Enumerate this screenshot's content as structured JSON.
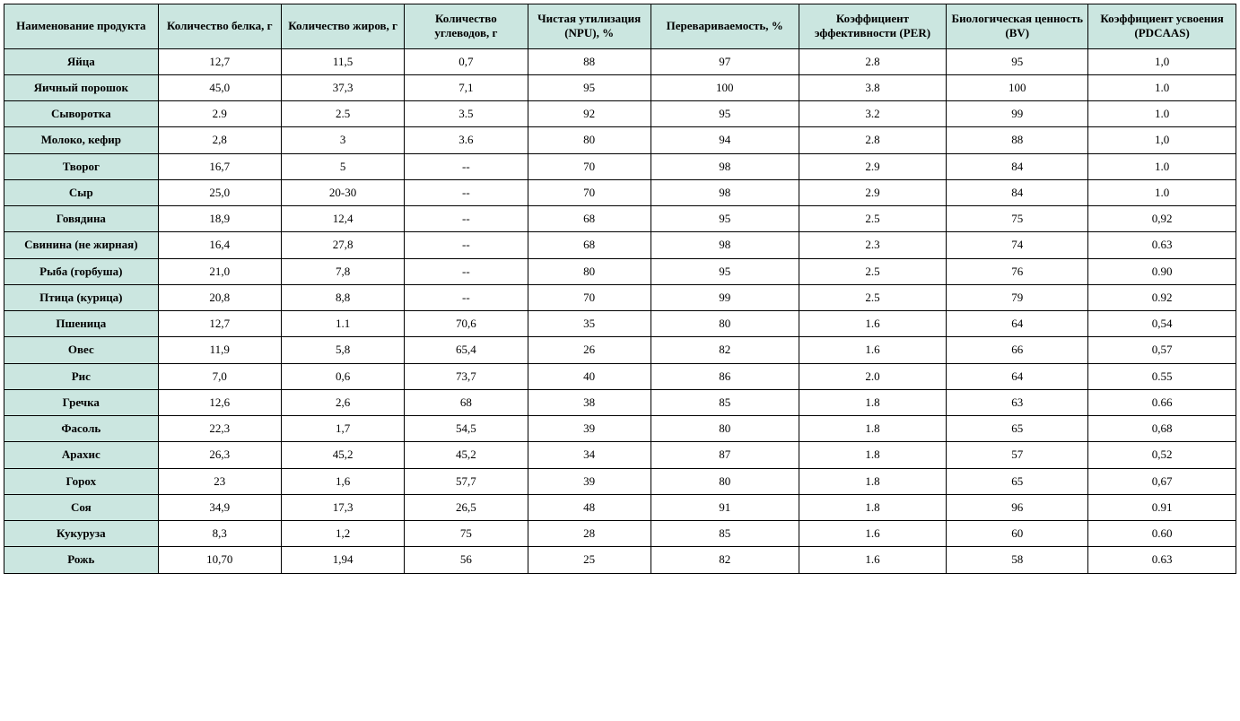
{
  "table": {
    "type": "table",
    "header_bg": "#cbe6e0",
    "rowhead_bg": "#cbe6e0",
    "border_color": "#000000",
    "background_color": "#ffffff",
    "font_family": "Times New Roman",
    "header_fontsize": 13,
    "cell_fontsize": 13,
    "columns": [
      {
        "label": "Наименование продукта",
        "width": "12.5%"
      },
      {
        "label": "Количество белка, г",
        "width": "10%"
      },
      {
        "label": "Количество жиров, г",
        "width": "10%"
      },
      {
        "label": "Количество углеводов, г",
        "width": "10%"
      },
      {
        "label": "Чистая утилизация (NPU), %",
        "width": "10%"
      },
      {
        "label": "Перевариваемость, %",
        "width": "12%"
      },
      {
        "label": "Коэффициент эффективности (PER)",
        "width": "12%"
      },
      {
        "label": "Биологическая ценность (BV)",
        "width": "11.5%"
      },
      {
        "label": "Коэффициент усвоения (PDCAAS)",
        "width": "12%"
      }
    ],
    "rows": [
      [
        "Яйца",
        "12,7",
        "11,5",
        "0,7",
        "88",
        "97",
        "2.8",
        "95",
        "1,0"
      ],
      [
        "Яичный порошок",
        "45,0",
        "37,3",
        "7,1",
        "95",
        "100",
        "3.8",
        "100",
        "1.0"
      ],
      [
        "Сыворотка",
        "2.9",
        "2.5",
        "3.5",
        "92",
        "95",
        "3.2",
        "99",
        "1.0"
      ],
      [
        "Молоко, кефир",
        "2,8",
        "3",
        "3.6",
        "80",
        "94",
        "2.8",
        "88",
        "1,0"
      ],
      [
        "Творог",
        "16,7",
        "5",
        "--",
        "70",
        "98",
        "2.9",
        "84",
        "1.0"
      ],
      [
        "Сыр",
        "25,0",
        "20-30",
        "--",
        "70",
        "98",
        "2.9",
        "84",
        "1.0"
      ],
      [
        "Говядина",
        "18,9",
        "12,4",
        "--",
        "68",
        "95",
        "2.5",
        "75",
        "0,92"
      ],
      [
        "Свинина (не жирная)",
        "16,4",
        "27,8",
        "--",
        "68",
        "98",
        "2.3",
        "74",
        "0.63"
      ],
      [
        "Рыба (горбуша)",
        "21,0",
        "7,8",
        "--",
        "80",
        "95",
        "2.5",
        "76",
        "0.90"
      ],
      [
        "Птица (курица)",
        "20,8",
        "8,8",
        "--",
        "70",
        "99",
        "2.5",
        "79",
        "0.92"
      ],
      [
        "Пшеница",
        "12,7",
        "1.1",
        "70,6",
        "35",
        "80",
        "1.6",
        "64",
        "0,54"
      ],
      [
        "Овес",
        "11,9",
        "5,8",
        "65,4",
        "26",
        "82",
        "1.6",
        "66",
        "0,57"
      ],
      [
        "Рис",
        "7,0",
        "0,6",
        "73,7",
        "40",
        "86",
        "2.0",
        "64",
        "0.55"
      ],
      [
        "Гречка",
        "12,6",
        "2,6",
        "68",
        "38",
        "85",
        "1.8",
        "63",
        "0.66"
      ],
      [
        "Фасоль",
        "22,3",
        "1,7",
        "54,5",
        "39",
        "80",
        "1.8",
        "65",
        "0,68"
      ],
      [
        "Арахис",
        "26,3",
        "45,2",
        "45,2",
        "34",
        "87",
        "1.8",
        "57",
        "0,52"
      ],
      [
        "Горох",
        "23",
        "1,6",
        "57,7",
        "39",
        "80",
        "1.8",
        "65",
        "0,67"
      ],
      [
        "Соя",
        "34,9",
        "17,3",
        "26,5",
        "48",
        "91",
        "1.8",
        "96",
        "0.91"
      ],
      [
        "Кукуруза",
        "8,3",
        "1,2",
        "75",
        "28",
        "85",
        "1.6",
        "60",
        "0.60"
      ],
      [
        "Рожь",
        "10,70",
        "1,94",
        "56",
        "25",
        "82",
        "1.6",
        "58",
        "0.63"
      ]
    ]
  }
}
